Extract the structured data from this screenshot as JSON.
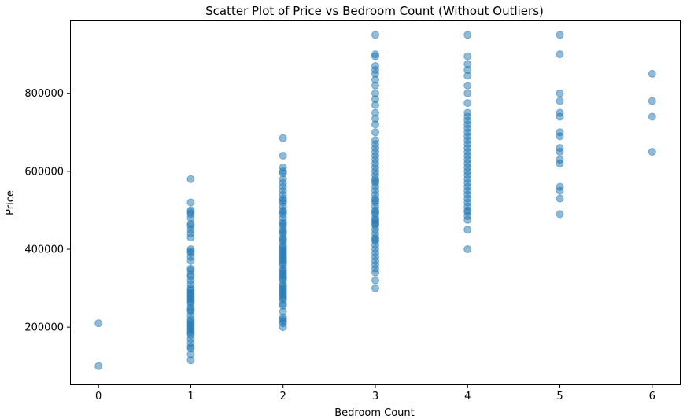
{
  "chart_data": {
    "type": "scatter",
    "title": "Scatter Plot of Price vs Bedroom Count (Without Outliers)",
    "xlabel": "Bedroom Count",
    "ylabel": "Price",
    "xlim": [
      -0.3,
      6.3
    ],
    "ylim": [
      53000,
      985000
    ],
    "x_ticks": [
      0,
      1,
      2,
      3,
      4,
      5,
      6
    ],
    "y_ticks": [
      200000,
      400000,
      600000,
      800000
    ],
    "grid": false,
    "marker_color": "#1f77b4",
    "marker_alpha": 0.5,
    "groups": [
      {
        "x": 0,
        "y": [
          100000,
          210000
        ]
      },
      {
        "x": 1,
        "y": [
          115000,
          130000,
          145000,
          150000,
          160000,
          170000,
          180000,
          185000,
          190000,
          195000,
          200000,
          205000,
          210000,
          215000,
          220000,
          230000,
          240000,
          245000,
          250000,
          260000,
          265000,
          270000,
          275000,
          280000,
          285000,
          290000,
          295000,
          300000,
          310000,
          320000,
          330000,
          335000,
          345000,
          350000,
          370000,
          380000,
          390000,
          395000,
          400000,
          430000,
          440000,
          450000,
          460000,
          465000,
          480000,
          490000,
          495000,
          500000,
          520000,
          580000
        ]
      },
      {
        "x": 2,
        "y": [
          200000,
          210000,
          215000,
          220000,
          225000,
          240000,
          255000,
          260000,
          270000,
          275000,
          280000,
          285000,
          290000,
          295000,
          300000,
          305000,
          310000,
          320000,
          325000,
          330000,
          335000,
          340000,
          345000,
          350000,
          360000,
          365000,
          370000,
          375000,
          380000,
          385000,
          390000,
          395000,
          400000,
          405000,
          410000,
          420000,
          425000,
          430000,
          440000,
          445000,
          450000,
          460000,
          465000,
          470000,
          480000,
          490000,
          495000,
          500000,
          510000,
          520000,
          525000,
          530000,
          540000,
          550000,
          560000,
          570000,
          580000,
          595000,
          600000,
          610000,
          640000,
          685000
        ]
      },
      {
        "x": 3,
        "y": [
          300000,
          320000,
          340000,
          350000,
          360000,
          370000,
          380000,
          390000,
          400000,
          410000,
          420000,
          425000,
          430000,
          440000,
          450000,
          460000,
          465000,
          470000,
          475000,
          480000,
          490000,
          495000,
          500000,
          510000,
          520000,
          525000,
          530000,
          540000,
          550000,
          560000,
          570000,
          575000,
          580000,
          590000,
          600000,
          610000,
          620000,
          630000,
          640000,
          650000,
          660000,
          670000,
          680000,
          700000,
          720000,
          735000,
          750000,
          770000,
          785000,
          800000,
          820000,
          835000,
          850000,
          860000,
          870000,
          895000,
          900000,
          950000
        ]
      },
      {
        "x": 4,
        "y": [
          400000,
          450000,
          475000,
          485000,
          495000,
          500000,
          510000,
          520000,
          530000,
          540000,
          550000,
          560000,
          570000,
          580000,
          590000,
          600000,
          610000,
          620000,
          630000,
          640000,
          650000,
          660000,
          670000,
          680000,
          690000,
          700000,
          710000,
          720000,
          730000,
          740000,
          750000,
          775000,
          800000,
          820000,
          845000,
          860000,
          875000,
          895000,
          950000
        ]
      },
      {
        "x": 5,
        "y": [
          490000,
          530000,
          550000,
          560000,
          620000,
          630000,
          650000,
          660000,
          690000,
          700000,
          740000,
          750000,
          780000,
          800000,
          900000,
          950000
        ]
      },
      {
        "x": 6,
        "y": [
          650000,
          740000,
          780000,
          850000
        ]
      }
    ]
  }
}
